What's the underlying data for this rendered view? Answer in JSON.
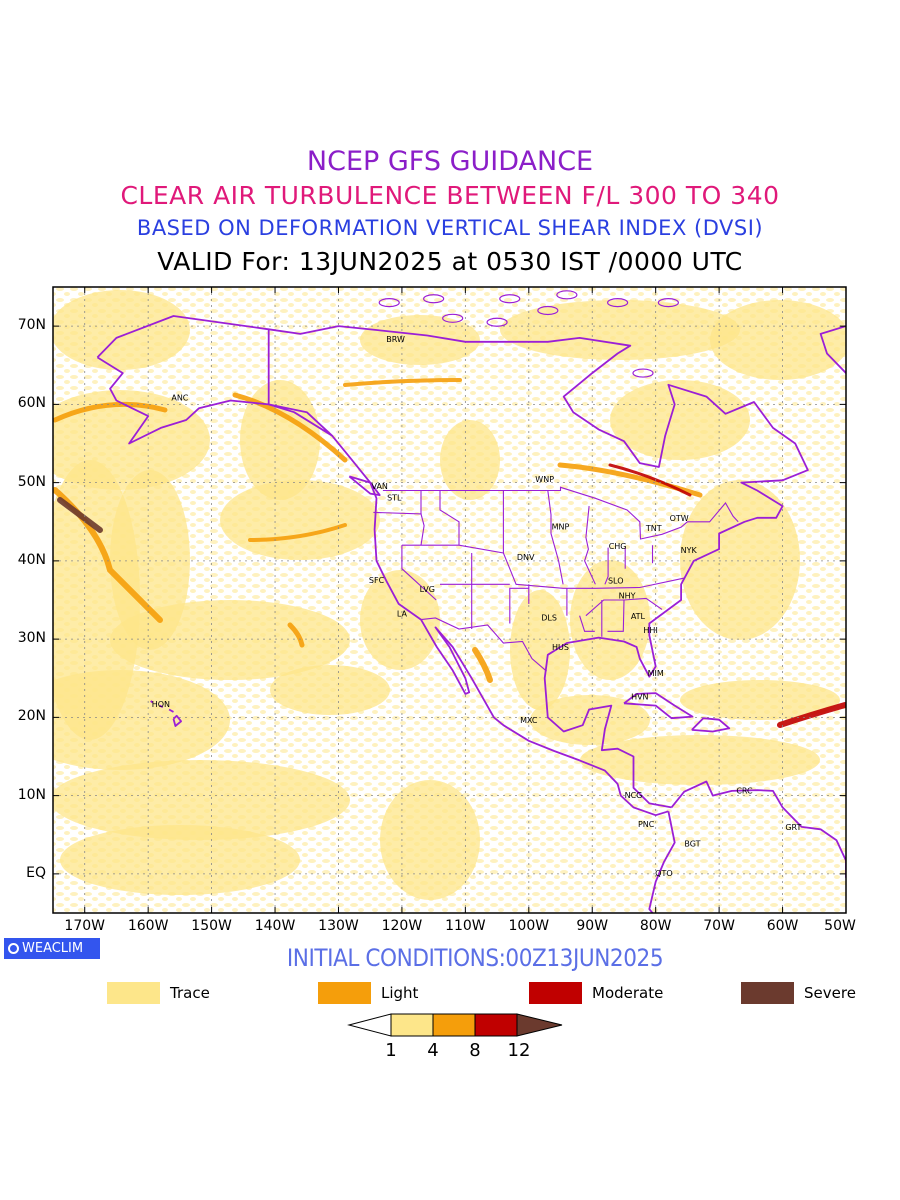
{
  "title": {
    "line1": "NCEP GFS GUIDANCE",
    "line2": "CLEAR AIR TURBULENCE BETWEEN F/L 300 TO 340",
    "line3": "BASED ON DEFORMATION VERTICAL SHEAR INDEX (DVSI)",
    "line4": "VALID For: 13JUN2025 at 0530 IST /0000 UTC"
  },
  "colors": {
    "line1": "#8b1ec8",
    "line2": "#e0197a",
    "line3": "#2a3fe0",
    "trace": "#fde68a",
    "light": "#f59e0b",
    "moderate": "#c00000",
    "severe": "#6b3a2e",
    "coast": "#9b1fd6",
    "initial": "#5b6fe6"
  },
  "map": {
    "lat_labels": [
      "70N",
      "60N",
      "50N",
      "40N",
      "30N",
      "20N",
      "10N",
      "EQ"
    ],
    "lon_labels": [
      "170W",
      "160W",
      "150W",
      "140W",
      "130W",
      "120W",
      "110W",
      "100W",
      "90W",
      "80W",
      "70W",
      "60W",
      "50W"
    ],
    "stations": [
      "BRW",
      "ANC",
      "VAN",
      "STL",
      "WNP",
      "MNP",
      "TNT",
      "OTW",
      "CHG",
      "NYK",
      "DNV",
      "SFC",
      "LVG",
      "LA",
      "SLO",
      "NHY",
      "ATL",
      "DLS",
      "HHI",
      "HUS",
      "MIM",
      "HVN",
      "HON",
      "MXC",
      "NCG",
      "PNC",
      "CRC",
      "GRT",
      "BGT",
      "QTO"
    ]
  },
  "brand": "WEACLIM",
  "initial_conditions": "INITIAL CONDITIONS:00Z13JUN2025",
  "legend": [
    {
      "label": "Trace",
      "color": "#fde68a"
    },
    {
      "label": "Light",
      "color": "#f59e0b"
    },
    {
      "label": "Moderate",
      "color": "#c00000"
    },
    {
      "label": "Severe",
      "color": "#6b3a2e"
    }
  ],
  "colorbar": {
    "ticks": [
      "1",
      "4",
      "8",
      "12"
    ],
    "colors": [
      "#ffffff",
      "#fde68a",
      "#f59e0b",
      "#c00000",
      "#6b3a2e"
    ]
  }
}
